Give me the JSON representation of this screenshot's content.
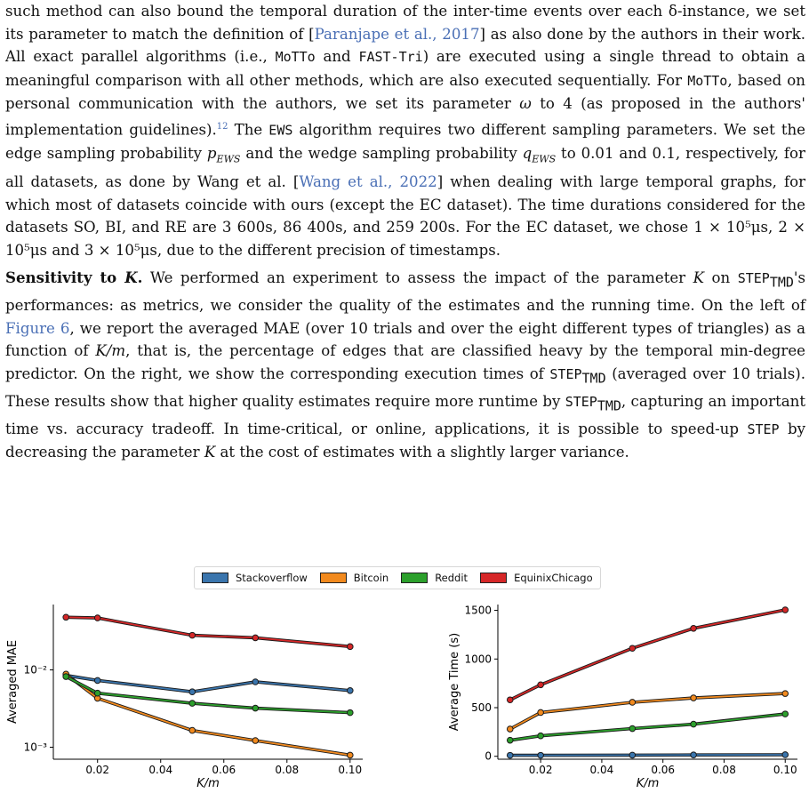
{
  "paragraphs": {
    "p1": {
      "s1": "such method can also bound the temporal duration of the inter-time events over each δ-instance, we set its parameter to match the definition of [",
      "cite1": "Paranjape et al., 2017",
      "s2": "] as also done by the authors in their work. All exact parallel algorithms (i.e., ",
      "motto": "MoTTo",
      "and": " and ",
      "fasttri": "FAST-Tri",
      "s3": ") are executed using a single thread to obtain a meaningful comparison with all other methods, which are also executed sequentially. For ",
      "motto2": "MoTTo",
      "s4": ", based on personal communication with the authors, we set its parameter ",
      "omega": "ω",
      "s5": " to 4 (as proposed in the authors' implementation guidelines).",
      "fn": "12",
      "s6": " The ",
      "ews": "EWS",
      "s7": " algorithm requires two different sampling parameters. We set the edge sampling probability ",
      "p": "p",
      "ews_sub": "EWS",
      "s8": " and the wedge sampling probability ",
      "q": "q",
      "ews_sub2": "EWS",
      "s9": " to 0.01 and 0.1, respectively, for all datasets, as done by Wang et al. [",
      "cite2": "Wang et al., 2022",
      "s10": "] when dealing with large temporal graphs, for which most of datasets coincide with ours (except the EC dataset). The time durations considered for the datasets SO, BI, and RE are 3 600s, 86 400s, and 259 200s. For the EC dataset, we chose 1 × 10⁵μs, 2 × 10⁵μs and 3 × 10⁵μs, due to the different precision of timestamps."
    },
    "p2": {
      "heading": "Sensitivity to ",
      "heading_k": "K",
      "heading_dot": ".",
      "s1": " We performed an experiment to assess the impact of the parameter ",
      "k1": "K",
      "s2": " on ",
      "step1": "STEP",
      "tmd1": "TMD",
      "s3": "'s performances: as metrics, we consider the quality of the estimates and the running time. On the left of ",
      "fig": "Figure 6",
      "s4": ", we report the averaged MAE (over 10 trials and over the eight different types of triangles) as a function of ",
      "km": "K/m",
      "s5": ", that is, the percentage of edges that are classified heavy by the temporal min-degree predictor. On the right, we show the corresponding execution times of ",
      "step2": "STEP",
      "tmd2": "TMD",
      "s6": " (averaged over 10 trials). These results show that higher quality estimates require more runtime by ",
      "step3": "STEP",
      "tmd3": "TMD",
      "s7": ", capturing an important time vs. accuracy tradeoff. In time-critical, or online, applications, it is possible to speed-up ",
      "step4": "STEP",
      "s8": " by decreasing the parameter ",
      "k2": "K",
      "s9": " at the cost of estimates with a slightly larger variance."
    }
  },
  "legend": [
    {
      "name": "Stackoverflow",
      "color": "#3a75ad"
    },
    {
      "name": "Bitcoin",
      "color": "#f28a1e"
    },
    {
      "name": "Reddit",
      "color": "#2ca02c"
    },
    {
      "name": "EquinixChicago",
      "color": "#d62728"
    }
  ],
  "chart_data": [
    {
      "type": "line",
      "xlabel": "K/m",
      "ylabel": "Averaged MAE",
      "yscale": "log",
      "ylim": [
        0.0007,
        0.07
      ],
      "xlim": [
        0.006,
        0.104
      ],
      "x": [
        0.01,
        0.02,
        0.05,
        0.07,
        0.1
      ],
      "xticks": [
        0.02,
        0.04,
        0.06,
        0.08,
        0.1
      ],
      "xtick_labels": [
        "0.02",
        "0.04",
        "0.06",
        "0.08",
        "0.10"
      ],
      "yticks": [
        0.001,
        0.01
      ],
      "ytick_labels": [
        "10⁻³",
        "10⁻²"
      ],
      "series": [
        {
          "name": "Stackoverflow",
          "values": [
            0.0085,
            0.0073,
            0.0052,
            0.007,
            0.0054
          ]
        },
        {
          "name": "Bitcoin",
          "values": [
            0.0088,
            0.0043,
            0.00165,
            0.00122,
            0.00079
          ]
        },
        {
          "name": "Reddit",
          "values": [
            0.0082,
            0.005,
            0.0037,
            0.0032,
            0.0028
          ]
        },
        {
          "name": "EquinixChicago",
          "values": [
            0.048,
            0.047,
            0.028,
            0.026,
            0.02
          ]
        }
      ]
    },
    {
      "type": "line",
      "xlabel": "K/m",
      "ylabel": "Average Time (s)",
      "ylim": [
        -30,
        1560
      ],
      "xlim": [
        0.006,
        0.104
      ],
      "x": [
        0.01,
        0.02,
        0.05,
        0.07,
        0.1
      ],
      "xticks": [
        0.02,
        0.04,
        0.06,
        0.08,
        0.1
      ],
      "xtick_labels": [
        "0.02",
        "0.04",
        "0.06",
        "0.08",
        "0.10"
      ],
      "yticks": [
        0,
        500,
        1000,
        1500
      ],
      "ytick_labels": [
        "0",
        "500",
        "1000",
        "1500"
      ],
      "series": [
        {
          "name": "Stackoverflow",
          "values": [
            10,
            10,
            12,
            14,
            16
          ]
        },
        {
          "name": "Bitcoin",
          "values": [
            280,
            450,
            555,
            600,
            645
          ]
        },
        {
          "name": "Reddit",
          "values": [
            165,
            210,
            285,
            330,
            435
          ]
        },
        {
          "name": "EquinixChicago",
          "values": [
            580,
            735,
            1110,
            1315,
            1505
          ]
        }
      ]
    }
  ]
}
